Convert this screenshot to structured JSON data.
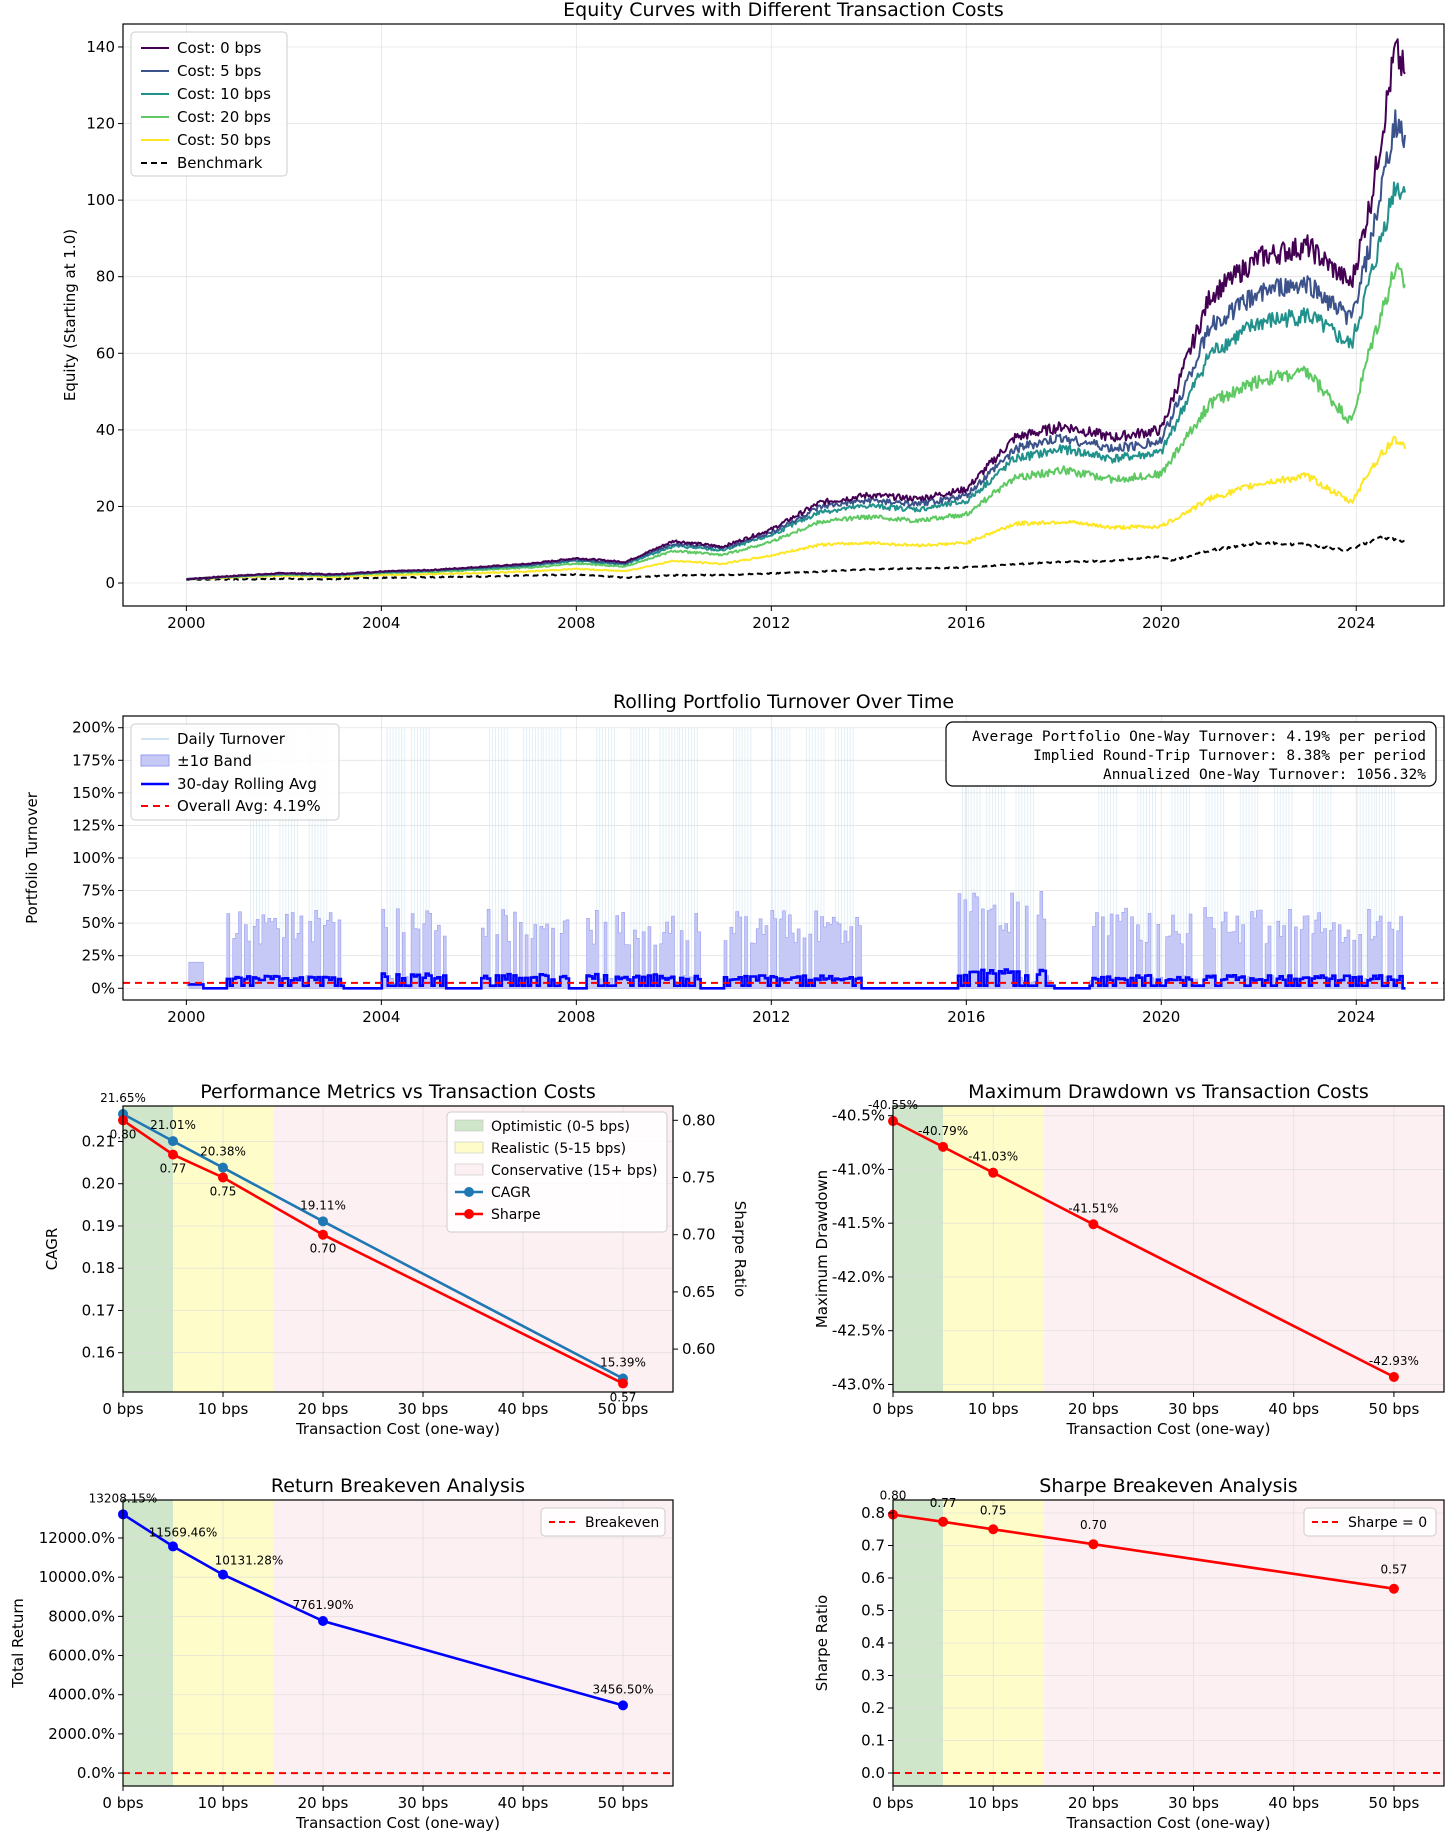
{
  "chart_data": [
    {
      "id": "equity",
      "type": "line",
      "title": "Equity Curves with Different Transaction Costs",
      "xlabel": "",
      "ylabel": "Equity (Starting at 1.0)",
      "xlim": [
        1998.7,
        2025.8
      ],
      "ylim": [
        -6,
        146
      ],
      "xticks": [
        2000,
        2004,
        2008,
        2012,
        2016,
        2020,
        2024
      ],
      "xtick_labels": [
        "2000",
        "2004",
        "2008",
        "2012",
        "2016",
        "2020",
        "2024"
      ],
      "yticks": [
        0,
        20,
        40,
        60,
        80,
        100,
        120,
        140
      ],
      "ytick_labels": [
        "0",
        "20",
        "40",
        "60",
        "80",
        "100",
        "120",
        "140"
      ],
      "grid": true,
      "legend": "top-left",
      "series": [
        {
          "name": "Cost: 0 bps",
          "color": "#440154",
          "style": "solid",
          "x": [
            2000,
            2001,
            2002,
            2003,
            2004,
            2005,
            2006,
            2007,
            2008,
            2009,
            2010,
            2011,
            2012,
            2013,
            2014,
            2015,
            2016,
            2017,
            2018,
            2019,
            2020,
            2021,
            2022,
            2023,
            2023.9,
            2024.3,
            2024.8,
            2025
          ],
          "y": [
            1.0,
            1.9,
            2.6,
            2.3,
            3.0,
            3.4,
            4.2,
            5.0,
            6.5,
            5.5,
            11.0,
            9.5,
            14.0,
            21.0,
            23.0,
            22.0,
            24.5,
            38.0,
            41.0,
            38.0,
            40.0,
            75.0,
            85.0,
            88.0,
            78.0,
            100.0,
            139.0,
            133.0
          ]
        },
        {
          "name": "Cost: 5 bps",
          "color": "#3b528b",
          "style": "solid",
          "x": [
            2000,
            2001,
            2002,
            2003,
            2004,
            2005,
            2006,
            2007,
            2008,
            2009,
            2010,
            2011,
            2012,
            2013,
            2014,
            2015,
            2016,
            2017,
            2018,
            2019,
            2020,
            2021,
            2022,
            2023,
            2023.9,
            2024.3,
            2024.8,
            2025
          ],
          "y": [
            1.0,
            1.8,
            2.5,
            2.2,
            2.9,
            3.3,
            4.0,
            4.7,
            6.1,
            5.2,
            10.3,
            9.0,
            13.2,
            19.8,
            21.6,
            20.5,
            22.8,
            35.0,
            38.0,
            35.0,
            37.0,
            67.0,
            76.0,
            78.0,
            69.0,
            89.0,
            120.0,
            117.0
          ]
        },
        {
          "name": "Cost: 10 bps",
          "color": "#21918c",
          "style": "solid",
          "x": [
            2000,
            2001,
            2002,
            2003,
            2004,
            2005,
            2006,
            2007,
            2008,
            2009,
            2010,
            2011,
            2012,
            2013,
            2014,
            2015,
            2016,
            2017,
            2018,
            2019,
            2020,
            2021,
            2022,
            2023,
            2023.9,
            2024.3,
            2024.8,
            2025
          ],
          "y": [
            1.0,
            1.8,
            2.4,
            2.1,
            2.8,
            3.2,
            3.8,
            4.5,
            5.8,
            4.9,
            9.7,
            8.5,
            12.5,
            18.6,
            20.2,
            19.2,
            21.3,
            32.5,
            35.0,
            32.5,
            34.0,
            60.0,
            68.0,
            70.0,
            62.0,
            80.0,
            104.0,
            102.0
          ]
        },
        {
          "name": "Cost: 20 bps",
          "color": "#5ec962",
          "style": "solid",
          "x": [
            2000,
            2001,
            2002,
            2003,
            2004,
            2005,
            2006,
            2007,
            2008,
            2009,
            2010,
            2011,
            2012,
            2013,
            2014,
            2015,
            2016,
            2017,
            2018,
            2019,
            2020,
            2021,
            2022,
            2023,
            2023.9,
            2024.3,
            2024.8,
            2025
          ],
          "y": [
            1.0,
            1.7,
            2.2,
            1.9,
            2.6,
            2.9,
            3.4,
            4.0,
            5.1,
            4.3,
            8.4,
            7.3,
            10.8,
            16.0,
            17.3,
            16.3,
            18.0,
            27.5,
            29.5,
            27.0,
            28.5,
            47.0,
            53.0,
            55.0,
            42.0,
            62.0,
            82.0,
            78.0
          ]
        },
        {
          "name": "Cost: 50 bps",
          "color": "#fde725",
          "style": "solid",
          "x": [
            2000,
            2001,
            2002,
            2003,
            2004,
            2005,
            2006,
            2007,
            2008,
            2009,
            2010,
            2011,
            2012,
            2013,
            2014,
            2015,
            2016,
            2017,
            2018,
            2019,
            2020,
            2021,
            2022,
            2023,
            2023.9,
            2024.3,
            2024.8,
            2025
          ],
          "y": [
            1.0,
            1.5,
            1.9,
            1.6,
            2.1,
            2.3,
            2.6,
            3.0,
            3.7,
            3.1,
            5.8,
            5.0,
            7.2,
            10.0,
            10.5,
            9.8,
            10.5,
            15.5,
            16.0,
            14.5,
            14.8,
            22.0,
            26.0,
            28.0,
            21.0,
            30.0,
            38.0,
            35.0
          ]
        },
        {
          "name": "Benchmark",
          "color": "#000000",
          "style": "dashed",
          "x": [
            2000,
            2001,
            2002,
            2003,
            2004,
            2005,
            2006,
            2007,
            2008,
            2009,
            2010,
            2011,
            2012,
            2013,
            2014,
            2015,
            2016,
            2017,
            2018,
            2019,
            2020,
            2020.2,
            2021,
            2022,
            2023,
            2023.8,
            2024.5,
            2025
          ],
          "y": [
            1.0,
            1.0,
            1.1,
            1.0,
            1.4,
            1.5,
            1.7,
            2.0,
            2.2,
            1.4,
            2.0,
            2.1,
            2.5,
            3.0,
            3.6,
            3.8,
            4.1,
            4.9,
            5.5,
            5.8,
            7.0,
            5.8,
            8.5,
            10.5,
            10.0,
            8.5,
            11.8,
            11.0
          ]
        }
      ]
    },
    {
      "id": "turnover",
      "type": "line",
      "title": "Rolling Portfolio Turnover Over Time",
      "xlabel": "",
      "ylabel": "Portfolio Turnover",
      "xlim": [
        1998.7,
        2025.8
      ],
      "ylim": [
        -0.09,
        2.09
      ],
      "xticks": [
        2000,
        2004,
        2008,
        2012,
        2016,
        2020,
        2024
      ],
      "xtick_labels": [
        "2000",
        "2004",
        "2008",
        "2012",
        "2016",
        "2020",
        "2024"
      ],
      "yticks": [
        0,
        0.25,
        0.5,
        0.75,
        1.0,
        1.25,
        1.5,
        1.75,
        2.0
      ],
      "ytick_labels": [
        "0%",
        "25%",
        "50%",
        "75%",
        "100%",
        "125%",
        "150%",
        "175%",
        "200%"
      ],
      "grid": true,
      "legend": "top-left",
      "legend_entries": [
        "Daily Turnover",
        "±1σ Band",
        "30-day Rolling Avg",
        "Overall Avg: 4.19%"
      ],
      "overall_avg": 0.0419,
      "active_periods": [
        [
          2000.8,
          2003.2,
          0.6,
          0.1
        ],
        [
          2004.0,
          2005.3,
          0.63,
          0.12
        ],
        [
          2006.0,
          2007.8,
          0.63,
          0.11
        ],
        [
          2008.2,
          2010.5,
          0.6,
          0.11
        ],
        [
          2011.0,
          2013.8,
          0.6,
          0.1
        ],
        [
          2015.8,
          2017.8,
          0.75,
          0.15
        ],
        [
          2018.5,
          2024.9,
          0.62,
          0.1
        ]
      ],
      "spike_years": [
        2001.5,
        2002.1,
        2002.7,
        2004.3,
        2004.8,
        2006.4,
        2007.1,
        2007.5,
        2008.6,
        2009.3,
        2009.9,
        2010.3,
        2011.4,
        2012.2,
        2012.9,
        2013.5,
        2016.1,
        2016.6,
        2017.2,
        2018.9,
        2019.7,
        2020.4,
        2021.1,
        2021.8,
        2022.5,
        2023.3,
        2024.2,
        2024.6
      ],
      "annotation": [
        "Average Portfolio One-Way Turnover: 4.19% per period",
        "Implied Round-Trip Turnover: 8.38% per period",
        "Annualized One-Way Turnover: 1056.32%"
      ]
    },
    {
      "id": "performance",
      "type": "line",
      "title": "Performance Metrics vs Transaction Costs",
      "xlabel": "Transaction Cost (one-way)",
      "ylabel": "CAGR",
      "ylabel_right": "Sharpe Ratio",
      "xlim": [
        0,
        55
      ],
      "ylim": [
        0.1507,
        0.2184
      ],
      "ylim_right": [
        0.5625,
        0.8125
      ],
      "xticks": [
        0,
        10,
        20,
        30,
        40,
        50
      ],
      "xtick_labels": [
        "0 bps",
        "10 bps",
        "20 bps",
        "30 bps",
        "40 bps",
        "50 bps"
      ],
      "yticks": [
        0.16,
        0.17,
        0.18,
        0.19,
        0.2,
        0.21
      ],
      "ytick_labels": [
        "0.16",
        "0.17",
        "0.18",
        "0.19",
        "0.20",
        "0.21"
      ],
      "yticks_right": [
        0.6,
        0.65,
        0.7,
        0.75,
        0.8
      ],
      "ytick_labels_right": [
        "0.60",
        "0.65",
        "0.70",
        "0.75",
        "0.80"
      ],
      "grid": true,
      "legend": "top-right",
      "regions": [
        {
          "name": "Optimistic (0-5 bps)",
          "from": 0,
          "to": 5,
          "color": "#cfe6ca"
        },
        {
          "name": "Realistic (5-15 bps)",
          "from": 5,
          "to": 15,
          "color": "#fefdca"
        },
        {
          "name": "Conservative (15+ bps)",
          "from": 15,
          "to": 55,
          "color": "#fdf0f2"
        }
      ],
      "x": [
        0,
        5,
        10,
        20,
        50
      ],
      "series": [
        {
          "name": "CAGR",
          "color": "#1f77b4",
          "values": [
            0.2165,
            0.2101,
            0.2038,
            0.1911,
            0.1539
          ],
          "labels": [
            "21.65%",
            "21.01%",
            "20.38%",
            "19.11%",
            "15.39%"
          ]
        },
        {
          "name": "Sharpe",
          "color": "#ff0000",
          "axis": "right",
          "values": [
            0.8,
            0.77,
            0.75,
            0.7,
            0.57
          ],
          "labels": [
            "0.80",
            "0.77",
            "0.75",
            "0.70",
            "0.57"
          ]
        }
      ]
    },
    {
      "id": "drawdown",
      "type": "line",
      "title": "Maximum Drawdown vs Transaction Costs",
      "xlabel": "Transaction Cost (one-way)",
      "ylabel": "Maximum Drawdown",
      "xlim": [
        0,
        55
      ],
      "ylim": [
        -0.4307,
        -0.4041
      ],
      "xticks": [
        0,
        10,
        20,
        30,
        40,
        50
      ],
      "xtick_labels": [
        "0 bps",
        "10 bps",
        "20 bps",
        "30 bps",
        "40 bps",
        "50 bps"
      ],
      "yticks": [
        -0.43,
        -0.425,
        -0.42,
        -0.415,
        -0.41,
        -0.405
      ],
      "ytick_labels": [
        "-43.0%",
        "-42.5%",
        "-42.0%",
        "-41.5%",
        "-41.0%",
        "-40.5%"
      ],
      "grid": true,
      "regions": [
        {
          "from": 0,
          "to": 5,
          "color": "#cfe6ca"
        },
        {
          "from": 5,
          "to": 15,
          "color": "#fefdca"
        },
        {
          "from": 15,
          "to": 55,
          "color": "#fdf0f2"
        }
      ],
      "x": [
        0,
        5,
        10,
        20,
        50
      ],
      "series": [
        {
          "name": "Max Drawdown",
          "color": "#ff0000",
          "values": [
            -0.4055,
            -0.4079,
            -0.4103,
            -0.4151,
            -0.4293
          ],
          "labels": [
            "-40.55%",
            "-40.79%",
            "-41.03%",
            "-41.51%",
            "-42.93%"
          ]
        }
      ]
    },
    {
      "id": "return_breakeven",
      "type": "line",
      "title": "Return Breakeven Analysis",
      "xlabel": "Transaction Cost (one-way)",
      "ylabel": "Total Return",
      "xlim": [
        0,
        55
      ],
      "ylim": [
        -6.6,
        139.4
      ],
      "xticks": [
        0,
        10,
        20,
        30,
        40,
        50
      ],
      "xtick_labels": [
        "0 bps",
        "10 bps",
        "20 bps",
        "30 bps",
        "40 bps",
        "50 bps"
      ],
      "yticks": [
        0,
        20,
        40,
        60,
        80,
        100,
        120
      ],
      "ytick_labels": [
        "0.0%",
        "2000.0%",
        "4000.0%",
        "6000.0%",
        "8000.0%",
        "10000.0%",
        "12000.0%"
      ],
      "grid": true,
      "legend": "top-right",
      "legend_entries": [
        "Breakeven"
      ],
      "breakeven": 0,
      "regions": [
        {
          "from": 0,
          "to": 5,
          "color": "#cfe6ca"
        },
        {
          "from": 5,
          "to": 15,
          "color": "#fefdca"
        },
        {
          "from": 15,
          "to": 55,
          "color": "#fdf0f2"
        }
      ],
      "x": [
        0,
        5,
        10,
        20,
        50
      ],
      "series": [
        {
          "name": "Total Return",
          "color": "#0000ff",
          "values": [
            132.0815,
            115.6946,
            101.3128,
            77.619,
            34.565
          ],
          "labels": [
            "13208.15%",
            "11569.46%",
            "10131.28%",
            "7761.90%",
            "3456.50%"
          ]
        }
      ]
    },
    {
      "id": "sharpe_breakeven",
      "type": "line",
      "title": "Sharpe Breakeven Analysis",
      "xlabel": "Transaction Cost (one-way)",
      "ylabel": "Sharpe Ratio",
      "xlim": [
        0,
        55
      ],
      "ylim": [
        -0.04,
        0.84
      ],
      "xticks": [
        0,
        10,
        20,
        30,
        40,
        50
      ],
      "xtick_labels": [
        "0 bps",
        "10 bps",
        "20 bps",
        "30 bps",
        "40 bps",
        "50 bps"
      ],
      "yticks": [
        0,
        0.1,
        0.2,
        0.3,
        0.4,
        0.5,
        0.6,
        0.7,
        0.8
      ],
      "ytick_labels": [
        "0.0",
        "0.1",
        "0.2",
        "0.3",
        "0.4",
        "0.5",
        "0.6",
        "0.7",
        "0.8"
      ],
      "grid": true,
      "legend": "top-right",
      "legend_entries": [
        "Sharpe = 0"
      ],
      "breakeven": 0,
      "regions": [
        {
          "from": 0,
          "to": 5,
          "color": "#cfe6ca"
        },
        {
          "from": 5,
          "to": 15,
          "color": "#fefdca"
        },
        {
          "from": 15,
          "to": 55,
          "color": "#fdf0f2"
        }
      ],
      "x": [
        0,
        5,
        10,
        20,
        50
      ],
      "series": [
        {
          "name": "Sharpe",
          "color": "#ff0000",
          "values": [
            0.795,
            0.773,
            0.75,
            0.704,
            0.567
          ],
          "labels": [
            "0.80",
            "0.77",
            "0.75",
            "0.70",
            "0.57"
          ]
        }
      ]
    }
  ]
}
